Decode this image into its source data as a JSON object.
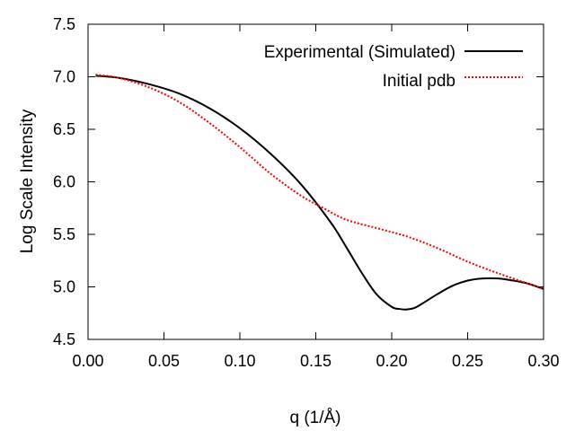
{
  "chart_data": {
    "type": "line",
    "title": "",
    "xlabel": "q (1/Å)",
    "ylabel": "Log Scale Intensity",
    "xlim": [
      0.0,
      0.3
    ],
    "ylim": [
      4.5,
      7.5
    ],
    "x_ticks": [
      "0.00",
      "0.05",
      "0.10",
      "0.15",
      "0.20",
      "0.25",
      "0.30"
    ],
    "y_ticks": [
      "4.5",
      "5.0",
      "5.5",
      "6.0",
      "6.5",
      "7.0",
      "7.5"
    ],
    "grid": false,
    "legend_position": "top-right",
    "series": [
      {
        "name": "Experimental (Simulated)",
        "color": "#000000",
        "style": "solid",
        "x": [
          0.005,
          0.02,
          0.04,
          0.06,
          0.08,
          0.1,
          0.12,
          0.14,
          0.16,
          0.17,
          0.18,
          0.19,
          0.2,
          0.205,
          0.21,
          0.215,
          0.22,
          0.23,
          0.24,
          0.25,
          0.26,
          0.27,
          0.28,
          0.29,
          0.3
        ],
        "y": [
          7.01,
          6.99,
          6.93,
          6.84,
          6.7,
          6.51,
          6.27,
          5.98,
          5.61,
          5.38,
          5.14,
          4.93,
          4.81,
          4.79,
          4.785,
          4.8,
          4.84,
          4.93,
          5.01,
          5.06,
          5.08,
          5.08,
          5.06,
          5.03,
          4.98
        ]
      },
      {
        "name": "Initial pdb",
        "color": "#ff0000",
        "style": "dotted",
        "x": [
          0.005,
          0.02,
          0.04,
          0.06,
          0.08,
          0.1,
          0.12,
          0.14,
          0.155,
          0.17,
          0.19,
          0.21,
          0.23,
          0.25,
          0.27,
          0.29,
          0.3
        ],
        "y": [
          7.02,
          6.99,
          6.9,
          6.76,
          6.56,
          6.33,
          6.08,
          5.87,
          5.75,
          5.64,
          5.56,
          5.48,
          5.37,
          5.24,
          5.13,
          5.03,
          4.98
        ]
      }
    ]
  }
}
